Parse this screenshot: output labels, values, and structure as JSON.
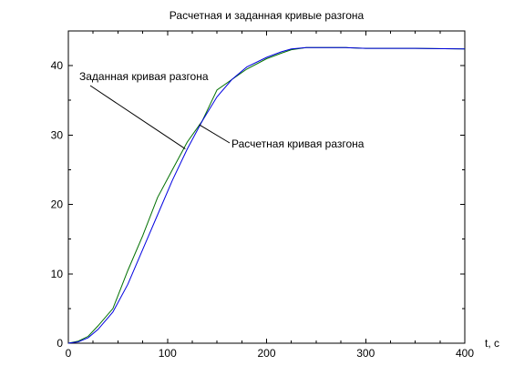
{
  "chart_data": {
    "type": "line",
    "title": "Расчетная и заданная кривые разгона",
    "xlabel": "t, c",
    "ylabel": "",
    "xlim": [
      0,
      400
    ],
    "ylim": [
      0,
      45
    ],
    "xticks": [
      0,
      100,
      200,
      300,
      400
    ],
    "yticks": [
      0,
      10,
      20,
      30,
      40
    ],
    "grid": false,
    "series": [
      {
        "name": "Заданная кривая разгона",
        "color": "#007000",
        "x": [
          0,
          10,
          20,
          30,
          45,
          60,
          75,
          90,
          105,
          120,
          135,
          150,
          165,
          180,
          200,
          215,
          225,
          240,
          260,
          280,
          300,
          350,
          400
        ],
        "y": [
          0,
          0.3,
          1.0,
          2.5,
          5.0,
          10.5,
          15.5,
          21.0,
          25.0,
          29.0,
          32.0,
          36.5,
          38.0,
          39.5,
          41.0,
          41.8,
          42.3,
          42.6,
          42.6,
          42.6,
          42.5,
          42.5,
          42.4
        ]
      },
      {
        "name": "Расчетная кривая разгона",
        "color": "#0000e0",
        "x": [
          0,
          10,
          20,
          30,
          45,
          60,
          75,
          90,
          105,
          120,
          135,
          150,
          165,
          180,
          200,
          215,
          225,
          240,
          260,
          280,
          300,
          350,
          400
        ],
        "y": [
          0,
          0.2,
          0.8,
          2.0,
          4.5,
          8.5,
          13.5,
          18.5,
          23.5,
          28.0,
          32.0,
          35.5,
          38.0,
          39.8,
          41.2,
          42.0,
          42.4,
          42.6,
          42.6,
          42.6,
          42.5,
          42.5,
          42.4
        ]
      }
    ],
    "annotations": [
      {
        "text": "Заданная кривая разгона",
        "series": 0,
        "x": 118,
        "y": 28.0
      },
      {
        "text": "Расчетная кривая разгона",
        "series": 1,
        "x": 132,
        "y": 31.5
      }
    ]
  }
}
